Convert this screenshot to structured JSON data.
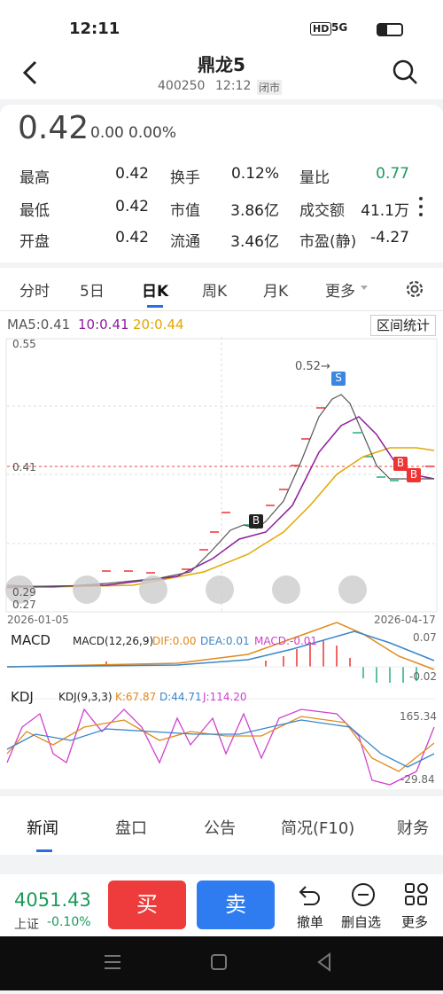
{
  "status_bar": {
    "time": "12:11",
    "network": "5G",
    "hd": "HD"
  },
  "header": {
    "title": "鼎龙5",
    "code": "400250",
    "time": "12:12",
    "status": "闭市"
  },
  "quote": {
    "price": "0.42",
    "change": "0.00",
    "percent": "0.00%"
  },
  "stats": [
    [
      "最高",
      "0.42",
      "换手",
      "0.12%",
      "量比",
      "0.77"
    ],
    [
      "最低",
      "0.42",
      "市值",
      "3.86亿",
      "成交额",
      "41.1万"
    ],
    [
      "开盘",
      "0.42",
      "流通",
      "3.46亿",
      "市盈(静)",
      "-4.27"
    ]
  ],
  "tabs": [
    "分时",
    "5日",
    "日K",
    "周K",
    "月K",
    "更多"
  ],
  "chart": {
    "ma5": "MA5:0.41",
    "ma10": "10:0.41",
    "ma20": "20:0.44",
    "range_button": "区间统计",
    "y_top": "0.55",
    "y_mid": "0.41",
    "y_bottom": "0.27",
    "y_low": "0.29",
    "peak": "0.52→",
    "sell": "S",
    "buy": "B",
    "date_start": "2026-01-05",
    "date_end": "2026-04-17"
  },
  "macd": {
    "name": "MACD",
    "params": "MACD(12,26,9)",
    "dif": "DIF:0.00",
    "dea": "DEA:0.01",
    "macd": "MACD:-0.01",
    "max": "0.07",
    "min": "-0.02"
  },
  "kdj": {
    "name": "KDJ",
    "params": "KDJ(9,3,3)",
    "k": "K:67.87",
    "d": "D:44.71",
    "j": "J:114.20",
    "max": "165.34",
    "min": "-29.84"
  },
  "news_tabs": [
    "新闻",
    "盘口",
    "公告",
    "简况(F10)",
    "财务"
  ],
  "bottom": {
    "index_value": "4051.43",
    "index_name": "上证",
    "index_change": "-0.10%",
    "buy": "买",
    "sell": "卖",
    "actions": [
      "撤单",
      "删自选",
      "更多"
    ]
  }
}
